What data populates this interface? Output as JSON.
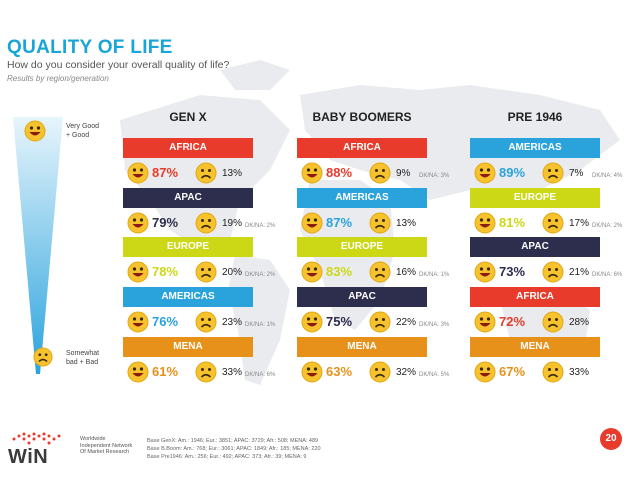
{
  "header": {
    "title": "QUALITY OF LIFE",
    "subtitle": "How do you consider your overall quality of life?",
    "note": "Results by region/generation"
  },
  "scale": {
    "top_label_1": "Very Good",
    "top_label_2": "+ Good",
    "bottom_label_1": "Somewhat",
    "bottom_label_2": "bad + Bad"
  },
  "colors": {
    "title": "#1aa5d8",
    "AFRICA": "#e83b2c",
    "APAC": "#2d2d4e",
    "EUROPE": "#ccd816",
    "AMERICAS": "#2aa3dd",
    "MENA": "#e8911a"
  },
  "chart_data": {
    "type": "table",
    "panels": [
      {
        "generation": "GEN X",
        "rows": [
          {
            "region": "AFRICA",
            "good": "87%",
            "bad": "13%",
            "dkna": ""
          },
          {
            "region": "APAC",
            "good": "79%",
            "bad": "19%",
            "dkna": "DK/NA: 2%"
          },
          {
            "region": "EUROPE",
            "good": "78%",
            "bad": "20%",
            "dkna": "DK/NA: 2%"
          },
          {
            "region": "AMERICAS",
            "good": "76%",
            "bad": "23%",
            "dkna": "DK/NA: 1%"
          },
          {
            "region": "MENA",
            "good": "61%",
            "bad": "33%",
            "dkna": "DK/NA: 6%"
          }
        ]
      },
      {
        "generation": "BABY BOOMERS",
        "rows": [
          {
            "region": "AFRICA",
            "good": "88%",
            "bad": "9%",
            "dkna": "DK/NA: 3%"
          },
          {
            "region": "AMERICAS",
            "good": "87%",
            "bad": "13%",
            "dkna": ""
          },
          {
            "region": "EUROPE",
            "good": "83%",
            "bad": "16%",
            "dkna": "DK/NA: 1%"
          },
          {
            "region": "APAC",
            "good": "75%",
            "bad": "22%",
            "dkna": "DK/NA: 3%"
          },
          {
            "region": "MENA",
            "good": "63%",
            "bad": "32%",
            "dkna": "DK/NA: 5%"
          }
        ]
      },
      {
        "generation": "PRE 1946",
        "rows": [
          {
            "region": "AMERICAS",
            "good": "89%",
            "bad": "7%",
            "dkna": "DK/NA: 4%"
          },
          {
            "region": "EUROPE",
            "good": "81%",
            "bad": "17%",
            "dkna": "DK/NA: 2%"
          },
          {
            "region": "APAC",
            "good": "73%",
            "bad": "21%",
            "dkna": "DK/NA: 6%"
          },
          {
            "region": "AFRICA",
            "good": "72%",
            "bad": "28%",
            "dkna": ""
          },
          {
            "region": "MENA",
            "good": "67%",
            "bad": "33%",
            "dkna": ""
          }
        ]
      }
    ]
  },
  "footer": {
    "base_1": "Base GenX:   Am.: 1946; Eur.: 3851; APAC: 3729; Afr.: 508; MENA: 489",
    "base_2": "Base  B.Boom: Am.: 768; Eur.: 3061; APAC: 1849; Afr.: 185; MENA: 220",
    "base_3": "Base Pre1946:   Am.: 256; Eur.: 492; APAC: 373; Afr.: 39; MENA: 9",
    "page_number": "20",
    "logo": "WiN",
    "logo_sub_1": "Worldwide",
    "logo_sub_2": "Independent Network",
    "logo_sub_3": "Of Market Research"
  }
}
